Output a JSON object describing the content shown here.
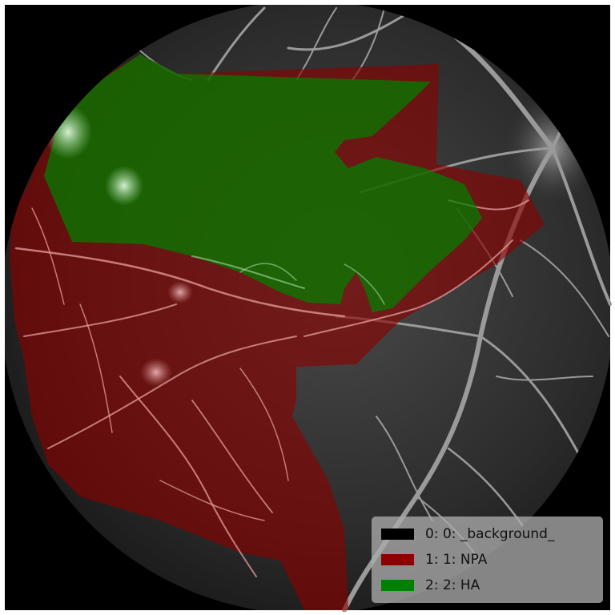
{
  "figure": {
    "subject": "fluorescein-angiography-fundus-with-segmentation-overlay"
  },
  "colors": {
    "background_class": "#000000",
    "npa_class": "#8b0000",
    "ha_class": "#008000"
  },
  "legend": {
    "items": [
      {
        "label": "0: 0: _background_",
        "color": "#000000"
      },
      {
        "label": "1: 1: NPA",
        "color": "#8b0000"
      },
      {
        "label": "2: 2: HA",
        "color": "#008000"
      }
    ]
  }
}
